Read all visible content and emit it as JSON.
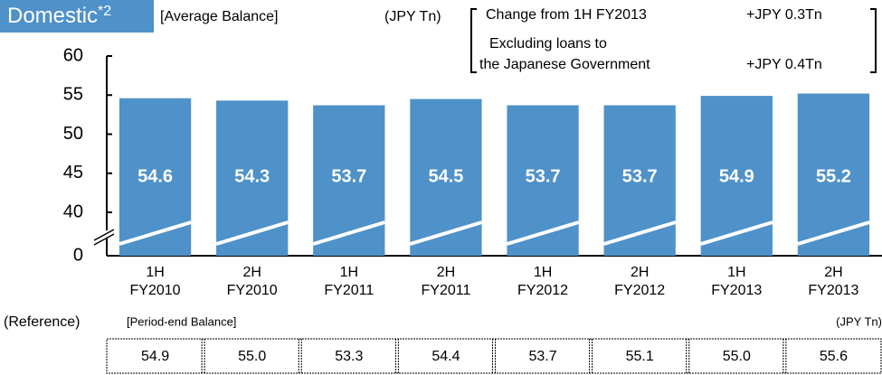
{
  "chart_data": {
    "type": "bar",
    "title": "Domestic",
    "title_footnote": "*2",
    "subtitle": "[Average Balance]",
    "unit": "(JPY Tn)",
    "annotation": {
      "line1": "Change from 1H FY2013",
      "value1": "+JPY 0.3Tn",
      "line2": "Excluding loans to",
      "line3": "the Japanese Government",
      "value2": "+JPY 0.4Tn"
    },
    "categories": [
      [
        "1H",
        "FY2010"
      ],
      [
        "2H",
        "FY2010"
      ],
      [
        "1H",
        "FY2011"
      ],
      [
        "2H",
        "FY2011"
      ],
      [
        "1H",
        "FY2012"
      ],
      [
        "2H",
        "FY2012"
      ],
      [
        "1H",
        "FY2013"
      ],
      [
        "2H",
        "FY2013"
      ]
    ],
    "values": [
      54.6,
      54.3,
      53.7,
      54.5,
      53.7,
      53.7,
      54.9,
      55.2
    ],
    "color": "#4f91c9",
    "ylim": [
      0,
      60
    ],
    "yticks": [
      0,
      40,
      45,
      50,
      55,
      60
    ],
    "axis_break": true
  },
  "reference": {
    "label": "(Reference)",
    "title": "[Period-end Balance]",
    "unit": "(JPY Tn)",
    "values": [
      "54.9",
      "55.0",
      "53.3",
      "54.4",
      "53.7",
      "55.1",
      "55.0",
      "55.6"
    ]
  }
}
